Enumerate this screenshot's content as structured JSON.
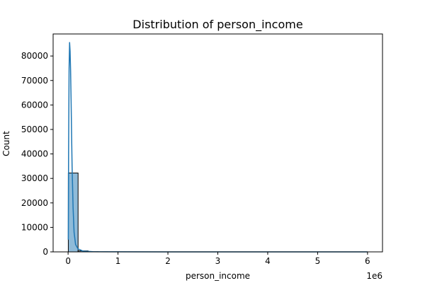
{
  "chart_data": {
    "type": "bar",
    "title": "Distribution of person_income",
    "xlabel": "person_income",
    "ylabel": "Count",
    "x_offset_label": "1e6",
    "xlim": [
      -0.3,
      6.3
    ],
    "ylim": [
      0,
      89000
    ],
    "x_ticks": [
      0,
      1,
      2,
      3,
      4,
      5,
      6
    ],
    "x_tick_labels": [
      "0",
      "1",
      "2",
      "3",
      "4",
      "5",
      "6"
    ],
    "y_ticks": [
      0,
      10000,
      20000,
      30000,
      40000,
      50000,
      60000,
      70000,
      80000
    ],
    "y_tick_labels": [
      "0",
      "10000",
      "20000",
      "30000",
      "40000",
      "50000",
      "60000",
      "70000",
      "80000"
    ],
    "grid": false,
    "bins": [
      {
        "x0": 0.004,
        "x1": 0.2,
        "count": 32200
      },
      {
        "x0": 0.2,
        "x1": 0.4,
        "count": 400
      },
      {
        "x0": 0.4,
        "x1": 0.6,
        "count": 60
      },
      {
        "x0": 0.6,
        "x1": 0.8,
        "count": 20
      }
    ],
    "kde": {
      "x": [
        0.004,
        0.01,
        0.02,
        0.03,
        0.04,
        0.05,
        0.06,
        0.07,
        0.08,
        0.1,
        0.12,
        0.15,
        0.2,
        0.3,
        0.5,
        1,
        2,
        3,
        4,
        5,
        6
      ],
      "y": [
        5000,
        40000,
        75000,
        85500,
        82000,
        74000,
        62000,
        48000,
        35000,
        18000,
        8000,
        3000,
        1200,
        300,
        80,
        20,
        0,
        0,
        0,
        0,
        0
      ]
    },
    "colors": {
      "bar_fill": "#1f77b4",
      "bar_fill_opacity": 0.5,
      "bar_edge": "#000000",
      "line": "#1f77b4"
    }
  }
}
